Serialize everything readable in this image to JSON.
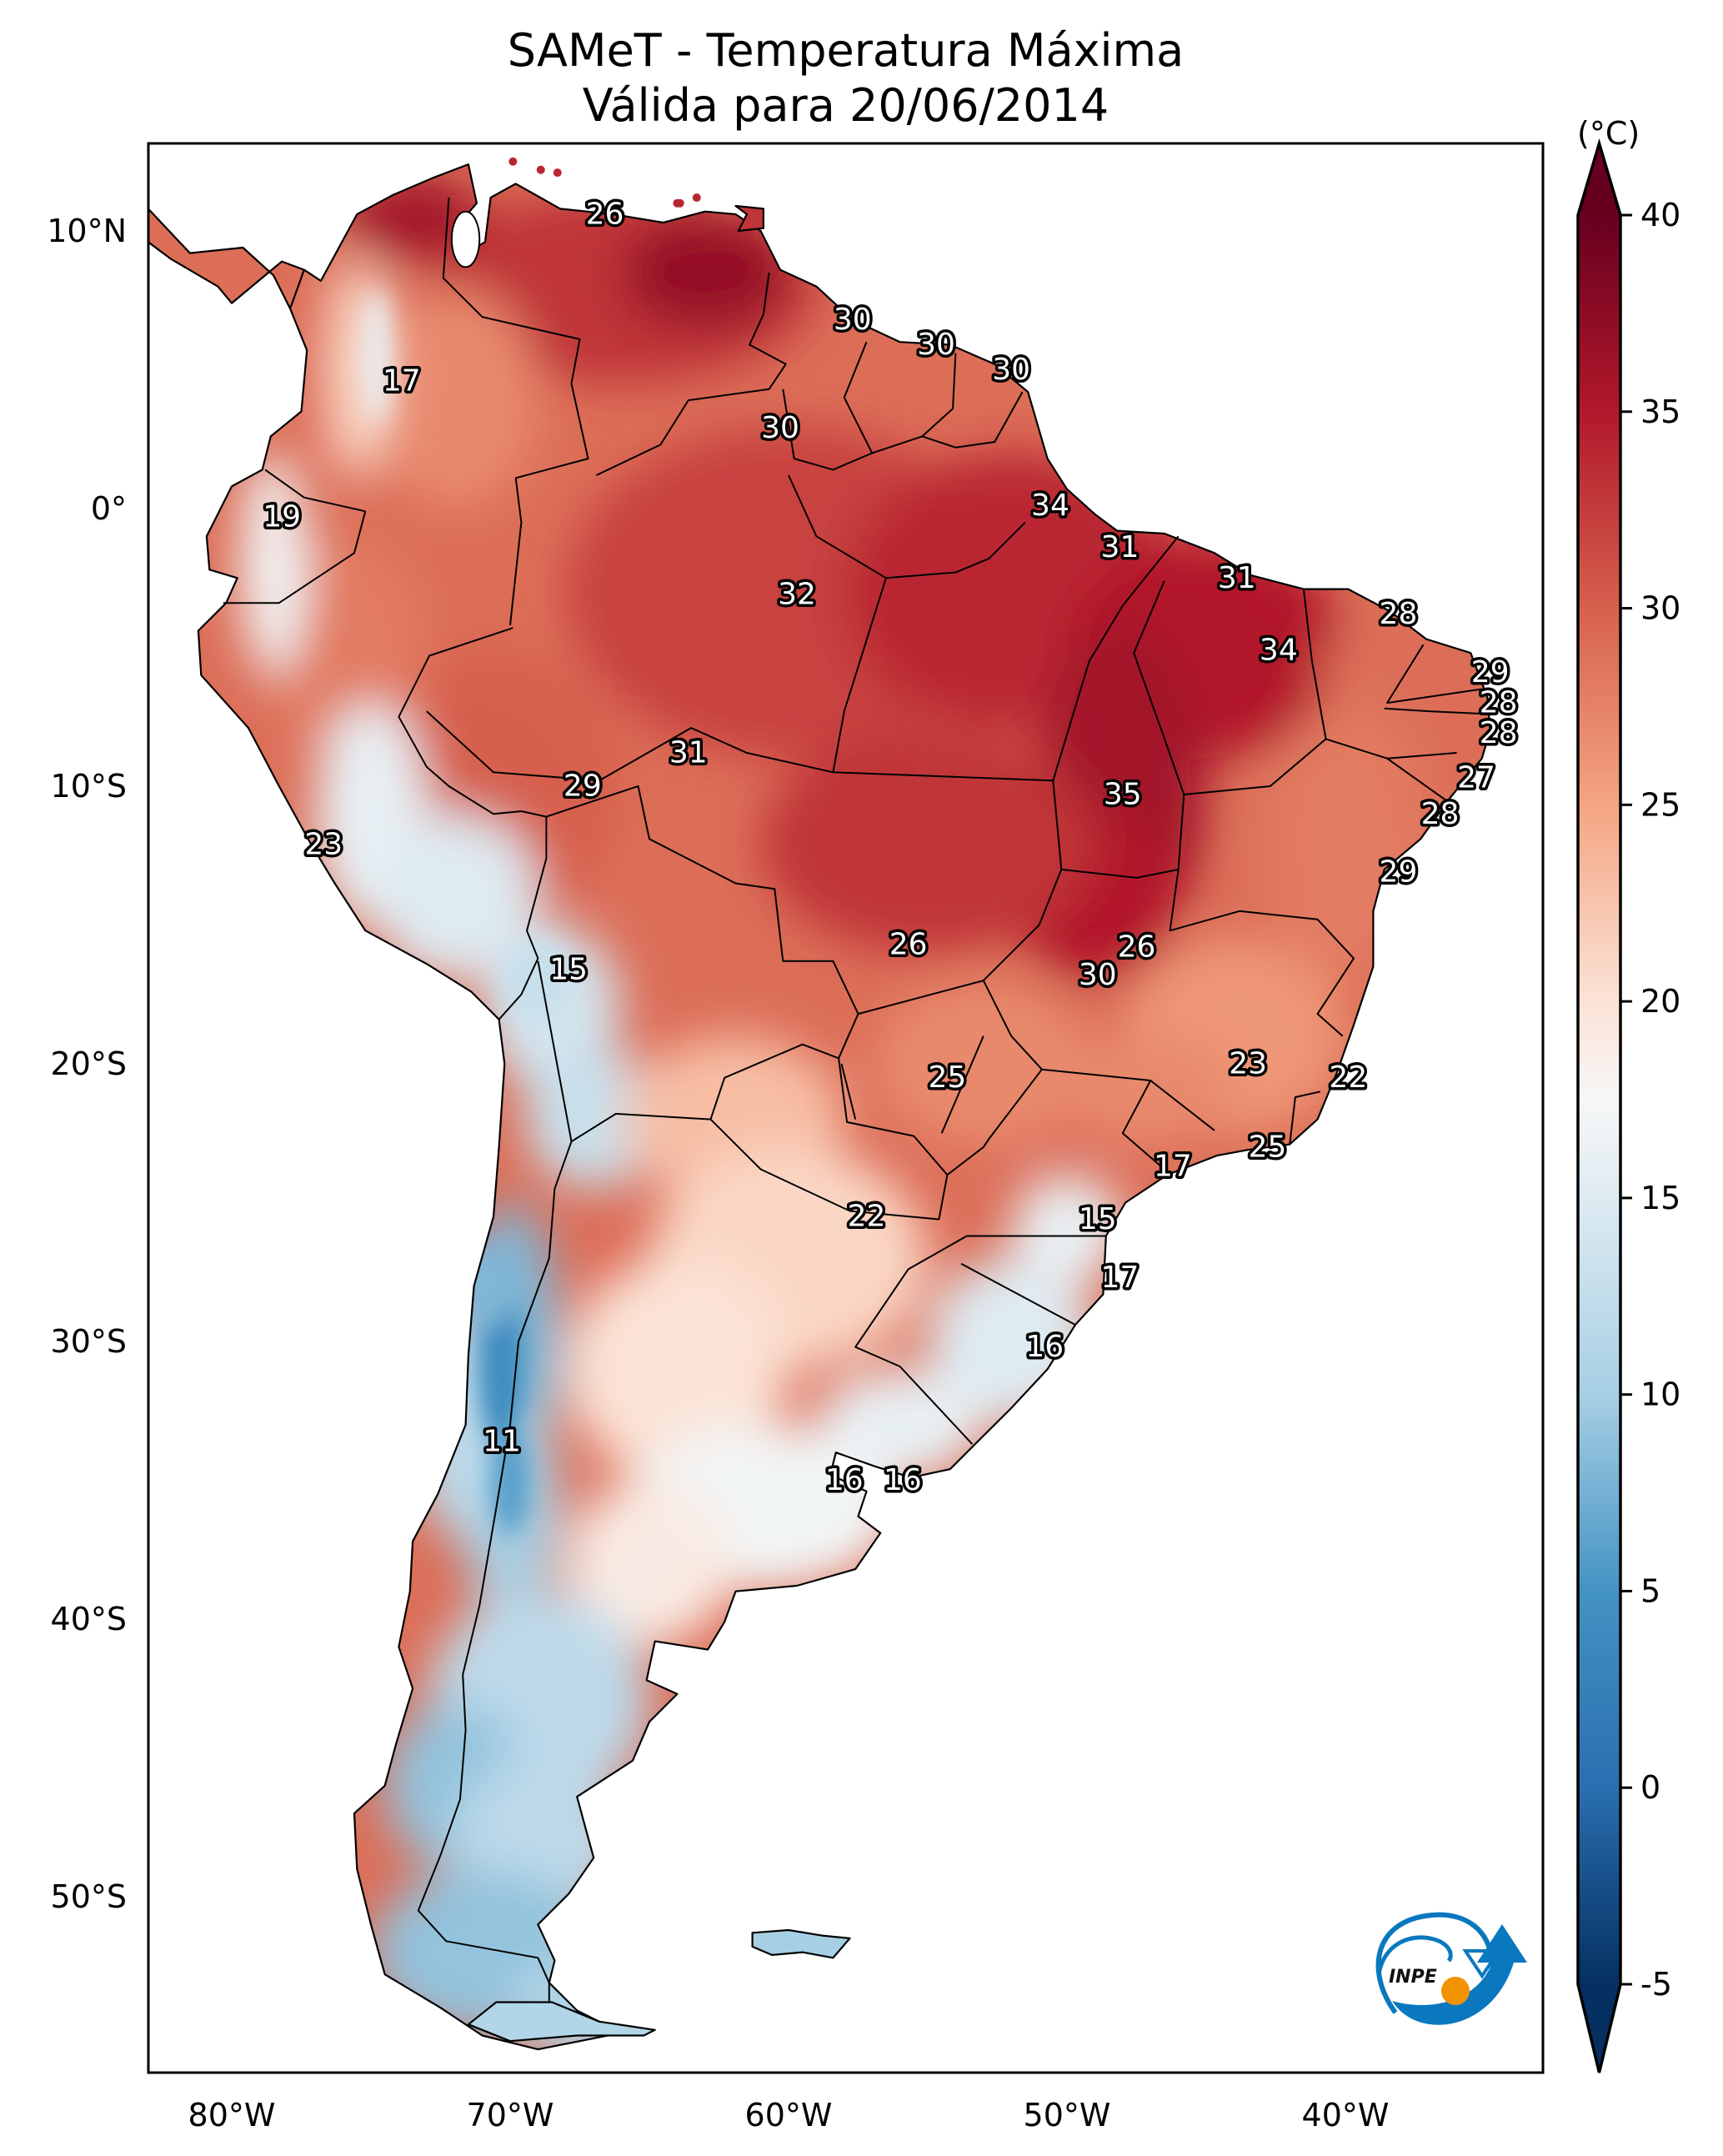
{
  "title": {
    "line1": "SAMeT - Temperatura Máxima",
    "line2": "Válida para 20/06/2014"
  },
  "logo": {
    "text": "INPE",
    "name": "INPE logo",
    "colors": {
      "blue": "#0a78be",
      "orange": "#f39200",
      "text": "#111111"
    }
  },
  "chart_data": {
    "type": "heatmap",
    "title": "SAMeT - Temperatura Máxima — Válida para 20/06/2014",
    "variable": "Maximum temperature",
    "units_label": "(°C)",
    "projection": "PlateCarree",
    "xlim": [
      -83,
      -33
    ],
    "ylim": [
      -56,
      13
    ],
    "x_ticks": [
      -80,
      -70,
      -60,
      -50,
      -40
    ],
    "x_tick_labels": [
      "80°W",
      "70°W",
      "60°W",
      "50°W",
      "40°W"
    ],
    "y_ticks": [
      10,
      0,
      -10,
      -20,
      -30,
      -40,
      -50
    ],
    "y_tick_labels": [
      "10°N",
      "0°",
      "10°S",
      "20°S",
      "30°S",
      "40°S",
      "50°S"
    ],
    "grid": false,
    "colorbar": {
      "colormap": "RdBu_r",
      "range": [
        -5,
        40
      ],
      "extend": "both",
      "ticks": [
        40,
        35,
        30,
        25,
        20,
        15,
        10,
        5,
        0,
        -5
      ],
      "tick_labels": [
        "40",
        "35",
        "30",
        "25",
        "20",
        "15",
        "10",
        "5",
        "0",
        "-5"
      ],
      "placement": "right",
      "stops": [
        {
          "value": -5,
          "color": "#053061"
        },
        {
          "value": 0,
          "color": "#2a6fb0"
        },
        {
          "value": 5,
          "color": "#4393c3"
        },
        {
          "value": 10,
          "color": "#a7cfe4"
        },
        {
          "value": 15,
          "color": "#deebf2"
        },
        {
          "value": 17.5,
          "color": "#f7f7f7"
        },
        {
          "value": 20,
          "color": "#fbe3d6"
        },
        {
          "value": 25,
          "color": "#f4a582"
        },
        {
          "value": 30,
          "color": "#d6604d"
        },
        {
          "value": 35,
          "color": "#b2182b"
        },
        {
          "value": 40,
          "color": "#67001f"
        }
      ]
    },
    "point_labels": [
      {
        "lon": -66.6,
        "lat": 10.6,
        "value": 26
      },
      {
        "lon": -73.9,
        "lat": 4.6,
        "value": 17
      },
      {
        "lon": -78.2,
        "lat": -0.3,
        "value": 19
      },
      {
        "lon": -57.7,
        "lat": 6.8,
        "value": 30
      },
      {
        "lon": -54.7,
        "lat": 5.9,
        "value": 30
      },
      {
        "lon": -52.0,
        "lat": 5.0,
        "value": 30
      },
      {
        "lon": -60.3,
        "lat": 2.9,
        "value": 30
      },
      {
        "lon": -50.6,
        "lat": 0.1,
        "value": 34
      },
      {
        "lon": -48.1,
        "lat": -1.4,
        "value": 31
      },
      {
        "lon": -43.9,
        "lat": -2.5,
        "value": 31
      },
      {
        "lon": -59.7,
        "lat": -3.1,
        "value": 32
      },
      {
        "lon": -38.1,
        "lat": -3.8,
        "value": 28
      },
      {
        "lon": -42.4,
        "lat": -5.1,
        "value": 34
      },
      {
        "lon": -34.8,
        "lat": -5.9,
        "value": 29
      },
      {
        "lon": -34.5,
        "lat": -7.0,
        "value": 28
      },
      {
        "lon": -34.5,
        "lat": -8.1,
        "value": 28
      },
      {
        "lon": -63.6,
        "lat": -8.8,
        "value": 31
      },
      {
        "lon": -35.3,
        "lat": -9.7,
        "value": 27
      },
      {
        "lon": -67.4,
        "lat": -10.0,
        "value": 29
      },
      {
        "lon": -48.0,
        "lat": -10.3,
        "value": 35
      },
      {
        "lon": -36.6,
        "lat": -11.0,
        "value": 28
      },
      {
        "lon": -76.7,
        "lat": -12.1,
        "value": 23
      },
      {
        "lon": -38.1,
        "lat": -13.1,
        "value": 29
      },
      {
        "lon": -55.7,
        "lat": -15.7,
        "value": 26
      },
      {
        "lon": -47.5,
        "lat": -15.8,
        "value": 26
      },
      {
        "lon": -67.9,
        "lat": -16.6,
        "value": 15
      },
      {
        "lon": -48.9,
        "lat": -16.8,
        "value": 30
      },
      {
        "lon": -43.5,
        "lat": -20.0,
        "value": 23
      },
      {
        "lon": -54.3,
        "lat": -20.5,
        "value": 25
      },
      {
        "lon": -39.9,
        "lat": -20.5,
        "value": 22
      },
      {
        "lon": -42.8,
        "lat": -23.0,
        "value": 25
      },
      {
        "lon": -46.2,
        "lat": -23.7,
        "value": 17
      },
      {
        "lon": -57.2,
        "lat": -25.5,
        "value": 22
      },
      {
        "lon": -48.9,
        "lat": -25.6,
        "value": 15
      },
      {
        "lon": -48.1,
        "lat": -27.7,
        "value": 17
      },
      {
        "lon": -50.8,
        "lat": -30.2,
        "value": 16
      },
      {
        "lon": -70.3,
        "lat": -33.6,
        "value": 11
      },
      {
        "lon": -58.0,
        "lat": -35.0,
        "value": 16
      },
      {
        "lon": -55.9,
        "lat": -35.0,
        "value": 16
      }
    ],
    "field_regions": [
      {
        "name": "northern-south-america",
        "approx_value": 31
      },
      {
        "name": "amazon-central-brazil",
        "approx_value": 33
      },
      {
        "name": "tocantins-hot-core",
        "approx_value": 36
      },
      {
        "name": "andes-peru-bolivia",
        "approx_value": 15
      },
      {
        "name": "chaco-northern-argentina",
        "approx_value": 21
      },
      {
        "name": "southern-brazil-uruguay",
        "approx_value": 16
      },
      {
        "name": "central-andes-chile",
        "approx_value": 5
      },
      {
        "name": "patagonia",
        "approx_value": 12
      }
    ]
  }
}
